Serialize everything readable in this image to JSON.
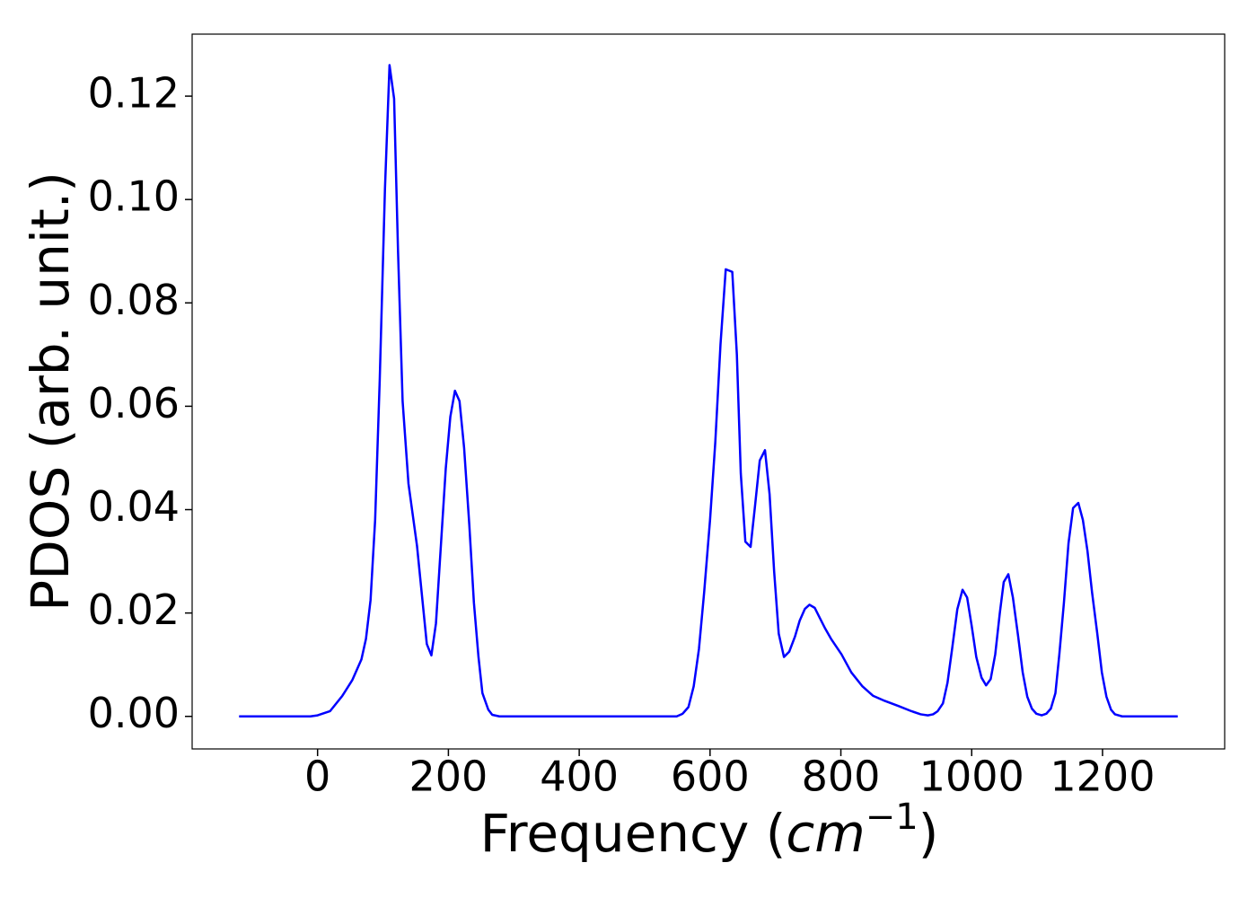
{
  "chart_data": {
    "type": "line",
    "xlabel": [
      "Frequency (",
      "cm",
      "−1",
      ")"
    ],
    "ylabel": "PDOS (arb. unit.)",
    "x": [
      -120,
      -20,
      -11,
      0,
      19,
      38,
      53,
      67,
      74,
      81,
      88,
      95,
      103,
      110,
      117,
      123,
      130,
      139,
      152,
      167,
      174,
      181,
      189,
      196,
      203,
      210,
      217,
      224,
      232,
      239,
      246,
      252,
      261,
      267,
      278,
      549,
      558,
      567,
      575,
      583,
      591,
      600,
      608,
      616,
      624,
      634,
      641,
      647,
      654,
      662,
      669,
      676,
      684,
      691,
      698,
      705,
      713,
      721,
      730,
      737,
      745,
      752,
      760,
      768,
      776,
      785,
      801,
      816,
      833,
      849,
      867,
      888,
      908,
      922,
      933,
      941,
      948,
      956,
      963,
      970,
      978,
      986,
      993,
      1000,
      1007,
      1015,
      1022,
      1029,
      1036,
      1043,
      1049,
      1056,
      1063,
      1071,
      1078,
      1085,
      1092,
      1099,
      1107,
      1114,
      1121,
      1128,
      1134,
      1141,
      1148,
      1155,
      1163,
      1170,
      1177,
      1184,
      1192,
      1199,
      1206,
      1213,
      1219,
      1230,
      1315
    ],
    "series": [
      {
        "color": "#0000ff",
        "values": [
          0,
          0,
          0,
          0.0002,
          0.001,
          0.004,
          0.007,
          0.011,
          0.015,
          0.0225,
          0.038,
          0.065,
          0.102,
          0.126,
          0.1195,
          0.09,
          0.061,
          0.045,
          0.033,
          0.014,
          0.0118,
          0.018,
          0.034,
          0.048,
          0.058,
          0.063,
          0.061,
          0.052,
          0.037,
          0.022,
          0.0115,
          0.0045,
          0.0013,
          0.0003,
          0,
          0,
          0.0005,
          0.0018,
          0.0058,
          0.013,
          0.024,
          0.038,
          0.053,
          0.072,
          0.0865,
          0.086,
          0.07,
          0.047,
          0.0338,
          0.0328,
          0.041,
          0.0495,
          0.0515,
          0.043,
          0.028,
          0.016,
          0.0115,
          0.0125,
          0.0155,
          0.0185,
          0.0208,
          0.0216,
          0.021,
          0.019,
          0.017,
          0.015,
          0.012,
          0.0085,
          0.0058,
          0.004,
          0.003,
          0.002,
          0.001,
          0.0004,
          0.0002,
          0.0004,
          0.001,
          0.0025,
          0.0065,
          0.013,
          0.0207,
          0.0245,
          0.023,
          0.0175,
          0.0115,
          0.0075,
          0.006,
          0.0072,
          0.012,
          0.02,
          0.026,
          0.0275,
          0.023,
          0.0155,
          0.0085,
          0.0038,
          0.0015,
          0.0005,
          0.0002,
          0.0005,
          0.0015,
          0.0045,
          0.012,
          0.022,
          0.0335,
          0.0403,
          0.0413,
          0.038,
          0.032,
          0.024,
          0.016,
          0.0085,
          0.0038,
          0.0013,
          0.0004,
          0,
          0
        ]
      }
    ],
    "xlim": [
      -191.75,
      1386.75
    ],
    "ylim": [
      -0.0063,
      0.132
    ],
    "xticks": [
      0,
      200,
      400,
      600,
      800,
      1000,
      1200
    ],
    "yticks": [
      {
        "value": 0,
        "label": "0.00"
      },
      {
        "value": 0.02,
        "label": "0.02"
      },
      {
        "value": 0.04,
        "label": "0.04"
      },
      {
        "value": 0.06,
        "label": "0.06"
      },
      {
        "value": 0.08,
        "label": "0.08"
      },
      {
        "value": 0.1,
        "label": "0.10"
      },
      {
        "value": 0.12,
        "label": "0.12"
      }
    ],
    "grid": false
  }
}
